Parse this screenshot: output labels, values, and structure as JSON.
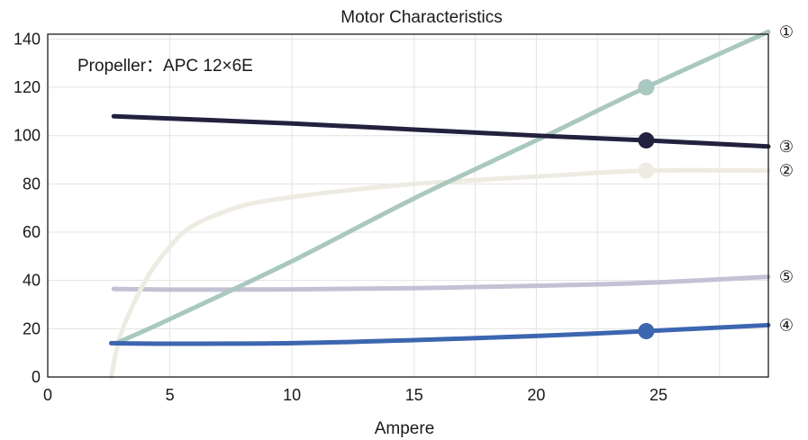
{
  "chart_data": {
    "type": "line",
    "title": "Motor Characteristics",
    "annotation": "Propeller：APC 12×6E",
    "xlabel": "Ampere",
    "ylabel": "",
    "xlim": [
      0,
      29.5
    ],
    "ylim": [
      0,
      142
    ],
    "xticks": [
      0,
      5,
      10,
      15,
      20,
      25
    ],
    "yticks": [
      0,
      20,
      40,
      60,
      80,
      100,
      120,
      140
    ],
    "grid": true,
    "highlight_x": 24.5,
    "series": [
      {
        "name": "①",
        "color": "#a9c8bf",
        "x": [
          2.8,
          5,
          10,
          15,
          20,
          24.5,
          29.5
        ],
        "y": [
          14,
          24,
          48,
          74,
          98,
          120,
          143
        ],
        "marker_at": 24.5
      },
      {
        "name": "②",
        "color": "#eeebe2",
        "x": [
          2.6,
          3,
          4,
          5,
          6,
          8,
          10,
          12,
          15,
          20,
          24.5,
          29.5
        ],
        "y": [
          0,
          18,
          40,
          54,
          63,
          71,
          74.5,
          77,
          80,
          83,
          85.5,
          85.5
        ],
        "marker_at": 24.5
      },
      {
        "name": "③",
        "color": "#22213f",
        "x": [
          2.7,
          10,
          15,
          20,
          24.5,
          29.5
        ],
        "y": [
          108,
          105,
          102.5,
          100,
          98,
          95.5
        ],
        "marker_at": 24.5
      },
      {
        "name": "④",
        "color": "#3c66b0",
        "x": [
          2.6,
          5,
          10,
          15,
          20,
          24.5,
          29.5
        ],
        "y": [
          14,
          13.8,
          14,
          15.3,
          17,
          19,
          21.5
        ],
        "marker_at": 24.5
      },
      {
        "name": "⑤",
        "color": "#c3c1d4",
        "x": [
          2.7,
          5,
          10,
          15,
          20,
          24.5,
          29.5
        ],
        "y": [
          36.5,
          36.2,
          36.3,
          36.8,
          37.8,
          39,
          41.5
        ],
        "marker_at": null
      }
    ]
  }
}
